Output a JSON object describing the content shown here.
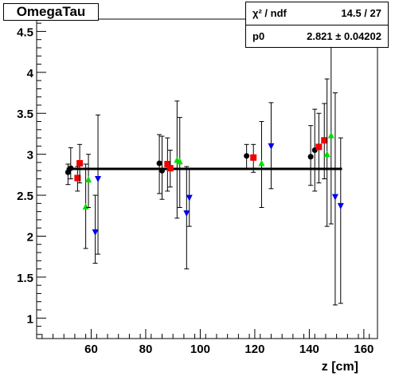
{
  "header": {
    "title": "OmegaTau"
  },
  "stats": {
    "chi2_label": "χ² / ndf",
    "chi2_value": "14.5 / 27",
    "p0_label": "p0",
    "p0_value": "2.821 ± 0.04202"
  },
  "chart_data": {
    "type": "scatter",
    "title": "OmegaTau",
    "xlabel": "z [cm]",
    "ylabel": "",
    "xlim": [
      40,
      165
    ],
    "ylim": [
      0.75,
      4.65
    ],
    "x_ticks": [
      60,
      80,
      100,
      120,
      140,
      160
    ],
    "y_ticks": [
      1,
      1.5,
      2,
      2.5,
      3,
      3.5,
      4,
      4.5
    ],
    "fit": {
      "type": "constant",
      "value": 2.821,
      "x_range": [
        51,
        152
      ]
    },
    "series": [
      {
        "marker": "circle",
        "color": "#000000",
        "points": [
          {
            "x": 51.5,
            "y": 2.78,
            "lo": 2.63,
            "hi": 2.88
          },
          {
            "x": 52.5,
            "y": 2.83,
            "lo": 2.7,
            "hi": 3.08
          },
          {
            "x": 85.0,
            "y": 2.89,
            "lo": 2.52,
            "hi": 3.24
          },
          {
            "x": 86.0,
            "y": 2.8,
            "lo": 2.45,
            "hi": 3.22
          },
          {
            "x": 117.0,
            "y": 2.98,
            "lo": 2.82,
            "hi": 3.12
          },
          {
            "x": 140.5,
            "y": 2.97,
            "lo": 2.62,
            "hi": 3.35
          },
          {
            "x": 142.0,
            "y": 3.05,
            "lo": 2.55,
            "hi": 3.55
          }
        ]
      },
      {
        "marker": "square",
        "color": "#ee0000",
        "points": [
          {
            "x": 55.0,
            "y": 2.71,
            "lo": 2.55,
            "hi": 2.85
          },
          {
            "x": 55.8,
            "y": 2.89,
            "lo": 2.65,
            "hi": 3.12
          },
          {
            "x": 88.0,
            "y": 2.88,
            "lo": 2.55,
            "hi": 3.2
          },
          {
            "x": 89.0,
            "y": 2.83,
            "lo": 2.6,
            "hi": 3.05
          },
          {
            "x": 119.5,
            "y": 2.96,
            "lo": 2.78,
            "hi": 3.12
          },
          {
            "x": 143.5,
            "y": 3.09,
            "lo": 2.65,
            "hi": 3.5
          },
          {
            "x": 145.5,
            "y": 3.17,
            "lo": 2.7,
            "hi": 3.62
          }
        ]
      },
      {
        "marker": "triangle-up",
        "color": "#00dd00",
        "points": [
          {
            "x": 58.0,
            "y": 2.36,
            "lo": 1.85,
            "hi": 2.88
          },
          {
            "x": 59.0,
            "y": 2.69,
            "lo": 2.35,
            "hi": 3.0
          },
          {
            "x": 91.5,
            "y": 2.93,
            "lo": 2.22,
            "hi": 3.65
          },
          {
            "x": 92.5,
            "y": 2.91,
            "lo": 2.35,
            "hi": 3.45
          },
          {
            "x": 122.5,
            "y": 2.89,
            "lo": 2.35,
            "hi": 3.4
          },
          {
            "x": 146.5,
            "y": 3.0,
            "lo": 2.12,
            "hi": 3.92
          },
          {
            "x": 148.0,
            "y": 3.23,
            "lo": 2.15,
            "hi": 4.32
          }
        ]
      },
      {
        "marker": "triangle-down",
        "color": "#0000ee",
        "points": [
          {
            "x": 61.5,
            "y": 2.05,
            "lo": 1.67,
            "hi": 2.5
          },
          {
            "x": 62.5,
            "y": 2.7,
            "lo": 1.78,
            "hi": 3.48
          },
          {
            "x": 95.0,
            "y": 2.28,
            "lo": 1.6,
            "hi": 2.85
          },
          {
            "x": 96.0,
            "y": 2.47,
            "lo": 2.12,
            "hi": 2.82
          },
          {
            "x": 126.0,
            "y": 3.1,
            "lo": 2.58,
            "hi": 3.63
          },
          {
            "x": 149.5,
            "y": 2.48,
            "lo": 1.16,
            "hi": 3.75
          },
          {
            "x": 151.5,
            "y": 2.37,
            "lo": 1.18,
            "hi": 3.2
          }
        ]
      }
    ]
  }
}
